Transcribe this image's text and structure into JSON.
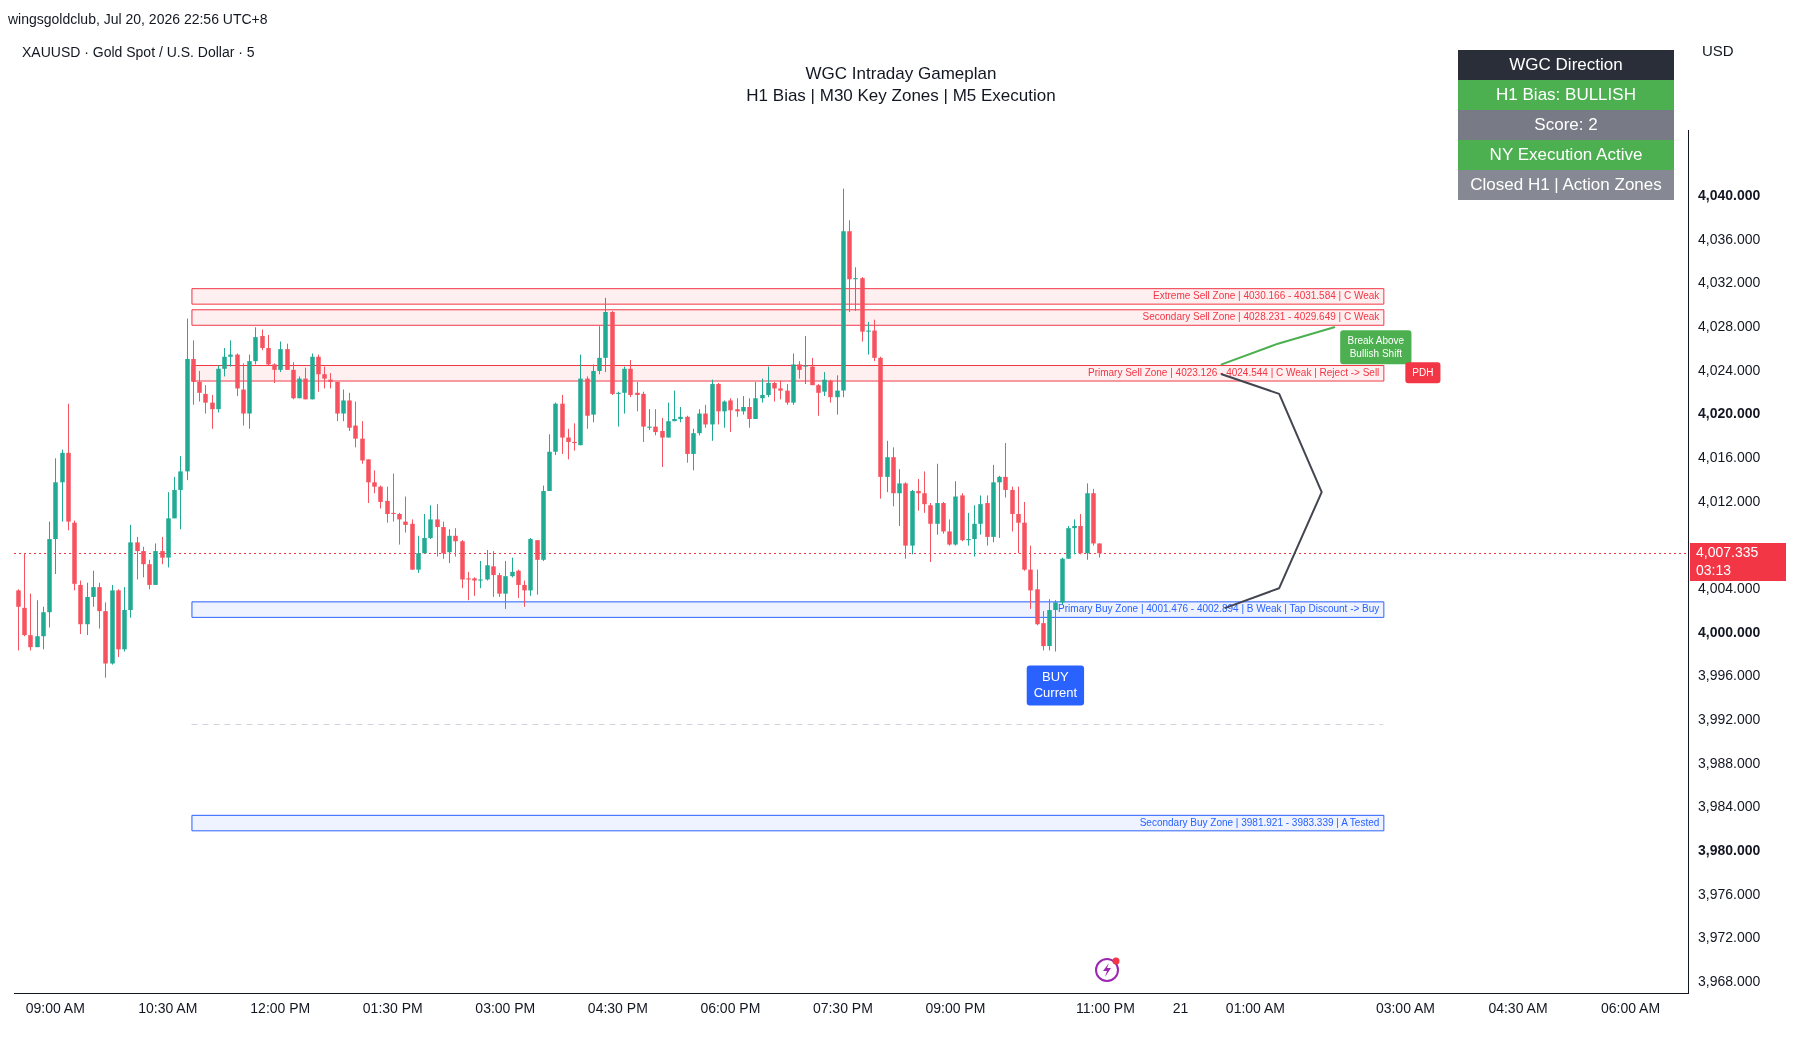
{
  "chart_data": {
    "type": "candlestick",
    "title": "WGC Intraday Gameplan",
    "subtitle": "H1 Bias | M30 Key Zones | M5 Execution",
    "ylabel": "USD",
    "x": [
      "2026-07-20T08:30",
      "2026-07-20T08:35",
      "2026-07-20T08:40",
      "2026-07-20T08:45",
      "2026-07-20T08:50",
      "2026-07-20T08:55",
      "2026-07-20T09:00",
      "2026-07-20T09:05",
      "2026-07-20T09:10",
      "2026-07-20T09:15",
      "2026-07-20T09:20",
      "2026-07-20T09:25",
      "2026-07-20T09:30",
      "2026-07-20T09:35",
      "2026-07-20T09:40",
      "2026-07-20T09:45",
      "2026-07-20T09:50",
      "2026-07-20T09:55",
      "2026-07-20T10:00",
      "2026-07-20T10:05",
      "2026-07-20T10:10",
      "2026-07-20T10:15",
      "2026-07-20T10:20",
      "2026-07-20T10:25",
      "2026-07-20T10:30",
      "2026-07-20T10:35",
      "2026-07-20T10:40",
      "2026-07-20T10:45",
      "2026-07-20T10:50",
      "2026-07-20T10:55",
      "2026-07-20T11:00",
      "2026-07-20T11:05",
      "2026-07-20T11:10",
      "2026-07-20T11:15",
      "2026-07-20T11:20",
      "2026-07-20T11:25",
      "2026-07-20T11:30",
      "2026-07-20T11:35",
      "2026-07-20T11:40",
      "2026-07-20T11:45",
      "2026-07-20T11:50",
      "2026-07-20T11:55",
      "2026-07-20T12:00",
      "2026-07-20T12:05",
      "2026-07-20T12:10",
      "2026-07-20T12:15",
      "2026-07-20T12:20",
      "2026-07-20T12:25",
      "2026-07-20T12:30",
      "2026-07-20T12:35",
      "2026-07-20T12:40",
      "2026-07-20T12:45",
      "2026-07-20T12:50",
      "2026-07-20T12:55",
      "2026-07-20T13:00",
      "2026-07-20T13:05",
      "2026-07-20T13:10",
      "2026-07-20T13:15",
      "2026-07-20T13:20",
      "2026-07-20T13:25",
      "2026-07-20T13:30",
      "2026-07-20T13:35",
      "2026-07-20T13:40",
      "2026-07-20T13:45",
      "2026-07-20T13:50",
      "2026-07-20T13:55",
      "2026-07-20T14:00",
      "2026-07-20T14:05",
      "2026-07-20T14:10",
      "2026-07-20T14:15",
      "2026-07-20T14:20",
      "2026-07-20T14:25",
      "2026-07-20T14:30",
      "2026-07-20T14:35",
      "2026-07-20T14:40",
      "2026-07-20T14:45",
      "2026-07-20T14:50",
      "2026-07-20T14:55",
      "2026-07-20T15:00",
      "2026-07-20T15:05",
      "2026-07-20T15:10",
      "2026-07-20T15:15",
      "2026-07-20T15:20",
      "2026-07-20T15:25",
      "2026-07-20T15:30",
      "2026-07-20T15:35",
      "2026-07-20T15:40",
      "2026-07-20T15:45",
      "2026-07-20T15:50",
      "2026-07-20T15:55",
      "2026-07-20T16:00",
      "2026-07-20T16:05",
      "2026-07-20T16:10",
      "2026-07-20T16:15",
      "2026-07-20T16:20",
      "2026-07-20T16:25",
      "2026-07-20T16:30",
      "2026-07-20T16:35",
      "2026-07-20T16:40",
      "2026-07-20T16:45",
      "2026-07-20T16:50",
      "2026-07-20T16:55",
      "2026-07-20T17:00",
      "2026-07-20T17:05",
      "2026-07-20T17:10",
      "2026-07-20T17:15",
      "2026-07-20T17:20",
      "2026-07-20T17:25",
      "2026-07-20T17:30",
      "2026-07-20T17:35",
      "2026-07-20T17:40",
      "2026-07-20T17:45",
      "2026-07-20T17:50",
      "2026-07-20T17:55",
      "2026-07-20T18:00",
      "2026-07-20T18:05",
      "2026-07-20T18:10",
      "2026-07-20T18:15",
      "2026-07-20T18:20",
      "2026-07-20T18:25",
      "2026-07-20T18:30",
      "2026-07-20T18:35",
      "2026-07-20T18:40",
      "2026-07-20T18:45",
      "2026-07-20T18:50",
      "2026-07-20T18:55",
      "2026-07-20T19:00",
      "2026-07-20T19:05",
      "2026-07-20T19:10",
      "2026-07-20T19:15",
      "2026-07-20T19:20",
      "2026-07-20T19:25",
      "2026-07-20T19:30",
      "2026-07-20T19:35",
      "2026-07-20T19:40",
      "2026-07-20T19:45",
      "2026-07-20T19:50",
      "2026-07-20T19:55",
      "2026-07-20T20:00",
      "2026-07-20T20:05",
      "2026-07-20T20:10",
      "2026-07-20T20:15",
      "2026-07-20T20:20",
      "2026-07-20T20:25",
      "2026-07-20T20:30",
      "2026-07-20T20:35",
      "2026-07-20T20:40",
      "2026-07-20T20:45",
      "2026-07-20T20:50",
      "2026-07-20T20:55",
      "2026-07-20T21:00",
      "2026-07-20T21:05",
      "2026-07-20T21:10",
      "2026-07-20T21:15",
      "2026-07-20T21:20",
      "2026-07-20T21:25",
      "2026-07-20T21:30",
      "2026-07-20T21:35",
      "2026-07-20T21:40",
      "2026-07-20T21:45",
      "2026-07-20T21:50",
      "2026-07-20T21:55",
      "2026-07-20T22:00",
      "2026-07-20T22:05",
      "2026-07-20T22:10",
      "2026-07-20T22:15",
      "2026-07-20T22:20",
      "2026-07-20T22:25",
      "2026-07-20T22:30",
      "2026-07-20T22:35",
      "2026-07-20T22:40",
      "2026-07-20T22:45",
      "2026-07-20T22:50",
      "2026-07-20T22:55"
    ],
    "ohlc": [
      [
        4003.9,
        4004.0,
        3998.4,
        4002.4
      ],
      [
        4002.3,
        4007.3,
        3999.7,
        3999.8
      ],
      [
        3999.8,
        4003.6,
        3998.4,
        3998.7
      ],
      [
        3998.7,
        4003.0,
        3998.7,
        3999.7
      ],
      [
        3999.7,
        4002.4,
        3998.5,
        4001.9
      ],
      [
        4001.9,
        4010.2,
        4000.5,
        4008.6
      ],
      [
        4008.6,
        4016.0,
        4005.4,
        4013.8
      ],
      [
        4013.8,
        4016.8,
        4010.2,
        4016.5
      ],
      [
        4016.5,
        4021.0,
        4009.4,
        4010.2
      ],
      [
        4010.1,
        4010.3,
        4003.9,
        4004.5
      ],
      [
        4004.4,
        4004.8,
        3999.9,
        4000.8
      ],
      [
        4000.8,
        4004.6,
        3999.8,
        4003.3
      ],
      [
        4003.3,
        4005.7,
        4002.4,
        4004.2
      ],
      [
        4004.2,
        4004.6,
        4000.4,
        4002.0
      ],
      [
        4002.0,
        4002.8,
        3995.9,
        3997.2
      ],
      [
        3997.2,
        4004.4,
        3997.1,
        4003.9
      ],
      [
        4003.9,
        4004.0,
        3997.8,
        3998.5
      ],
      [
        3998.5,
        4004.2,
        3998.3,
        4002.1
      ],
      [
        4002.1,
        4009.9,
        4001.4,
        4008.3
      ],
      [
        4008.3,
        4008.8,
        4004.9,
        4007.5
      ],
      [
        4007.5,
        4007.9,
        4005.1,
        4006.3
      ],
      [
        4006.3,
        4006.7,
        4004.0,
        4004.4
      ],
      [
        4004.4,
        4008.2,
        4004.4,
        4007.5
      ],
      [
        4007.5,
        4008.8,
        4006.3,
        4006.9
      ],
      [
        4006.9,
        4012.9,
        4006.0,
        4010.5
      ],
      [
        4010.5,
        4014.3,
        4010.5,
        4013.1
      ],
      [
        4013.1,
        4016.2,
        4009.5,
        4014.8
      ],
      [
        4014.8,
        4028.8,
        4014.0,
        4025.1
      ],
      [
        4025.1,
        4026.8,
        4020.9,
        4023.0
      ],
      [
        4023.0,
        4024.0,
        4021.2,
        4022.0
      ],
      [
        4021.9,
        4022.7,
        4020.1,
        4021.1
      ],
      [
        4021.1,
        4021.8,
        4018.7,
        4020.5
      ],
      [
        4020.5,
        4024.5,
        4020.2,
        4024.2
      ],
      [
        4024.2,
        4026.1,
        4023.5,
        4025.3
      ],
      [
        4025.3,
        4026.8,
        4024.4,
        4025.5
      ],
      [
        4025.5,
        4025.6,
        4021.7,
        4022.4
      ],
      [
        4022.3,
        4024.7,
        4019.0,
        4020.1
      ],
      [
        4020.1,
        4025.5,
        4018.7,
        4024.9
      ],
      [
        4024.9,
        4028.0,
        4024.6,
        4027.1
      ],
      [
        4027.2,
        4027.8,
        4025.9,
        4026.1
      ],
      [
        4026.1,
        4027.3,
        4024.5,
        4024.6
      ],
      [
        4024.6,
        4024.7,
        4022.9,
        4024.1
      ],
      [
        4024.1,
        4026.7,
        4023.9,
        4026.0
      ],
      [
        4026.0,
        4026.5,
        4024.1,
        4024.1
      ],
      [
        4024.1,
        4024.8,
        4021.4,
        4021.5
      ],
      [
        4021.5,
        4023.5,
        4021.5,
        4023.3
      ],
      [
        4023.3,
        4024.3,
        4021.4,
        4021.4
      ],
      [
        4021.4,
        4025.6,
        4021.4,
        4025.3
      ],
      [
        4025.3,
        4025.5,
        4022.1,
        4023.7
      ],
      [
        4023.7,
        4024.4,
        4022.4,
        4023.3
      ],
      [
        4023.2,
        4023.8,
        4022.4,
        4023.0
      ],
      [
        4023.0,
        4023.0,
        4019.4,
        4020.1
      ],
      [
        4020.1,
        4022.3,
        4019.4,
        4021.3
      ],
      [
        4021.3,
        4022.0,
        4018.5,
        4018.8
      ],
      [
        4019.0,
        4021.2,
        4017.0,
        4017.8
      ],
      [
        4017.8,
        4019.4,
        4015.5,
        4015.8
      ],
      [
        4015.9,
        4015.9,
        4011.9,
        4013.8
      ],
      [
        4013.8,
        4014.9,
        4012.8,
        4013.4
      ],
      [
        4013.4,
        4013.5,
        4011.4,
        4012.0
      ],
      [
        4012.1,
        4013.4,
        4010.1,
        4010.9
      ],
      [
        4011.0,
        4014.6,
        4010.2,
        4010.9
      ],
      [
        4010.9,
        4011.0,
        4008.1,
        4010.4
      ],
      [
        4010.2,
        4012.5,
        4009.2,
        4009.9
      ],
      [
        4010.0,
        4010.4,
        4005.8,
        4005.8
      ],
      [
        4005.8,
        4008.9,
        4005.5,
        4007.3
      ],
      [
        4007.3,
        4010.9,
        4007.3,
        4008.7
      ],
      [
        4008.7,
        4011.7,
        4008.6,
        4010.4
      ],
      [
        4010.4,
        4011.8,
        4007.0,
        4009.7
      ],
      [
        4009.7,
        4010.2,
        4006.8,
        4007.3
      ],
      [
        4007.4,
        4009.5,
        4006.4,
        4008.9
      ],
      [
        4008.9,
        4009.6,
        4007.0,
        4008.4
      ],
      [
        4008.4,
        4008.5,
        4004.1,
        4004.9
      ],
      [
        4005.0,
        4005.6,
        4003.0,
        4004.9
      ],
      [
        4005.0,
        4005.1,
        4003.4,
        4004.8
      ],
      [
        4004.8,
        4006.6,
        4004.1,
        4004.9
      ],
      [
        4004.9,
        4007.6,
        4004.8,
        4006.2
      ],
      [
        4006.1,
        4007.5,
        4003.3,
        4005.3
      ],
      [
        4005.3,
        4005.5,
        4003.3,
        4003.6
      ],
      [
        4003.6,
        4006.6,
        4002.2,
        4005.2
      ],
      [
        4005.2,
        4006.9,
        4005.1,
        4005.6
      ],
      [
        4005.7,
        4005.8,
        4003.2,
        4004.4
      ],
      [
        4004.4,
        4004.8,
        4002.4,
        4003.9
      ],
      [
        4003.9,
        4008.7,
        4003.4,
        4008.6
      ],
      [
        4008.5,
        4008.5,
        4003.5,
        4006.7
      ],
      [
        4006.7,
        4013.5,
        4006.6,
        4013.0
      ],
      [
        4013.0,
        4018.2,
        4013.0,
        4016.6
      ],
      [
        4016.6,
        4021.1,
        4016.3,
        4021.0
      ],
      [
        4021.0,
        4021.8,
        4016.4,
        4017.9
      ],
      [
        4017.9,
        4018.7,
        4015.9,
        4017.5
      ],
      [
        4017.5,
        4019.2,
        4016.7,
        4017.4
      ],
      [
        4017.2,
        4025.5,
        4017.2,
        4023.3
      ],
      [
        4023.3,
        4023.5,
        4018.7,
        4019.9
      ],
      [
        4020.0,
        4024.6,
        4019.3,
        4024.0
      ],
      [
        4024.0,
        4028.1,
        4023.7,
        4025.2
      ],
      [
        4025.2,
        4030.7,
        4023.9,
        4029.4
      ],
      [
        4029.4,
        4029.5,
        4021.8,
        4021.9
      ],
      [
        4021.9,
        4022.1,
        4018.9,
        4022.0
      ],
      [
        4022.0,
        4024.4,
        4020.1,
        4024.2
      ],
      [
        4024.2,
        4025.0,
        4021.6,
        4021.8
      ],
      [
        4022.0,
        4023.0,
        4020.3,
        4021.8
      ],
      [
        4021.9,
        4022.1,
        4017.5,
        4018.9
      ],
      [
        4018.8,
        4020.5,
        4018.6,
        4018.9
      ],
      [
        4018.9,
        4020.5,
        4018.1,
        4018.4
      ],
      [
        4018.5,
        4019.7,
        4015.2,
        4017.9
      ],
      [
        4017.9,
        4021.1,
        4017.9,
        4019.4
      ],
      [
        4019.4,
        4022.2,
        4019.4,
        4019.6
      ],
      [
        4019.6,
        4020.7,
        4019.3,
        4019.8
      ],
      [
        4019.8,
        4019.9,
        4015.6,
        4016.4
      ],
      [
        4016.4,
        4018.7,
        4014.9,
        4018.3
      ],
      [
        4018.3,
        4020.5,
        4018.1,
        4020.1
      ],
      [
        4020.1,
        4020.9,
        4018.8,
        4019.1
      ],
      [
        4019.1,
        4023.2,
        4017.6,
        4022.8
      ],
      [
        4022.8,
        4022.9,
        4019.1,
        4020.3
      ],
      [
        4020.3,
        4021.3,
        4018.8,
        4021.2
      ],
      [
        4021.3,
        4021.5,
        4018.4,
        4020.4
      ],
      [
        4020.5,
        4021.5,
        4019.8,
        4020.3
      ],
      [
        4020.3,
        4021.7,
        4020.0,
        4020.7
      ],
      [
        4020.7,
        4021.5,
        4018.8,
        4019.6
      ],
      [
        4019.6,
        4023.0,
        4019.6,
        4021.5
      ],
      [
        4021.5,
        4023.3,
        4021.1,
        4021.8
      ],
      [
        4021.8,
        4024.4,
        4021.6,
        4022.9
      ],
      [
        4022.9,
        4023.0,
        4021.2,
        4022.4
      ],
      [
        4022.4,
        4023.1,
        4021.4,
        4022.2
      ],
      [
        4022.2,
        4022.8,
        4020.9,
        4021.1
      ],
      [
        4021.1,
        4025.6,
        4020.9,
        4024.6
      ],
      [
        4024.6,
        4024.9,
        4023.3,
        4024.1
      ],
      [
        4024.4,
        4027.2,
        4022.8,
        4024.5
      ],
      [
        4024.4,
        4025.2,
        4022.7,
        4022.7
      ],
      [
        4022.7,
        4022.8,
        4019.9,
        4022.0
      ],
      [
        4022.1,
        4023.9,
        4021.7,
        4023.2
      ],
      [
        4023.1,
        4023.2,
        4021.1,
        4021.6
      ],
      [
        4021.6,
        4023.6,
        4020.0,
        4022.2
      ],
      [
        4022.2,
        4040.7,
        4021.6,
        4036.8
      ],
      [
        4036.8,
        4037.8,
        4029.4,
        4032.4
      ],
      [
        4032.4,
        4033.5,
        4029.5,
        4032.5
      ],
      [
        4032.5,
        4032.6,
        4026.7,
        4027.6
      ],
      [
        4027.6,
        4028.5,
        4025.5,
        4027.7
      ],
      [
        4027.7,
        4028.7,
        4024.9,
        4025.2
      ],
      [
        4025.2,
        4025.3,
        4012.3,
        4014.3
      ],
      [
        4014.3,
        4017.6,
        4012.9,
        4016.1
      ],
      [
        4016.1,
        4017.0,
        4011.6,
        4012.8
      ],
      [
        4012.8,
        4015.0,
        4009.8,
        4013.7
      ],
      [
        4013.7,
        4013.8,
        4006.8,
        4008.0
      ],
      [
        4008.0,
        4013.1,
        4007.2,
        4013.0
      ],
      [
        4013.0,
        4014.1,
        4011.2,
        4012.8
      ],
      [
        4012.8,
        4014.8,
        4011.0,
        4011.8
      ],
      [
        4011.7,
        4011.9,
        4006.5,
        4010.0
      ],
      [
        4010.0,
        4015.5,
        4009.0,
        4011.9
      ],
      [
        4011.9,
        4012.0,
        4009.1,
        4009.3
      ],
      [
        4009.3,
        4010.4,
        4008.0,
        4008.1
      ],
      [
        4008.1,
        4013.9,
        4008.0,
        4012.5
      ],
      [
        4012.6,
        4012.8,
        4008.4,
        4008.5
      ],
      [
        4008.5,
        4011.0,
        4008.0,
        4008.6
      ],
      [
        4008.6,
        4011.7,
        4007.0,
        4010.0
      ],
      [
        4010.0,
        4012.6,
        4009.0,
        4011.8
      ],
      [
        4011.9,
        4012.6,
        4008.0,
        4008.8
      ],
      [
        4008.8,
        4015.4,
        4008.3,
        4013.8
      ],
      [
        4013.8,
        4014.4,
        4008.7,
        4014.3
      ],
      [
        4014.3,
        4017.4,
        4012.4,
        4013.1
      ],
      [
        4013.1,
        4013.4,
        4009.3,
        4010.9
      ],
      [
        4010.9,
        4013.4,
        4007.3,
        4010.1
      ],
      [
        4010.1,
        4012.0,
        4005.7,
        4005.8
      ],
      [
        4005.8,
        4008.0,
        4002.2,
        4003.9
      ],
      [
        4004.0,
        4005.8,
        4000.7,
        4000.8
      ],
      [
        4000.9,
        4002.0,
        3998.4,
        3998.8
      ],
      [
        3998.8,
        4003.1,
        3998.4,
        4002.1
      ],
      [
        4002.1,
        4003.0,
        3998.3,
        4002.8
      ],
      [
        4002.8,
        4006.9,
        4002.6,
        4006.8
      ],
      [
        4006.8,
        4009.8,
        4006.8,
        4009.6
      ],
      [
        4009.6,
        4010.4,
        4007.2,
        4009.8
      ],
      [
        4009.8,
        4010.9,
        4007.2,
        4007.3
      ],
      [
        4007.3,
        4013.7,
        4006.7,
        4012.8
      ],
      [
        4012.8,
        4013.2,
        4008.0,
        4008.2
      ],
      [
        4008.2,
        4008.2,
        4006.9,
        4007.3
      ]
    ],
    "series": [
      {
        "type": "line",
        "color": "#4caf50",
        "x": [
          "2026-07-21T00:33",
          "2026-07-21T01:18",
          "2026-07-21T02:03"
        ],
        "values": [
          4024.6,
          4026.5,
          4028.0
        ]
      },
      {
        "type": "line",
        "color": "#434651",
        "x": [
          "2026-07-21T00:33",
          "2026-07-21T01:19",
          "2026-07-21T01:53",
          "2026-07-21T01:19",
          "2026-07-21T00:36"
        ],
        "values": [
          4023.7,
          4021.9,
          4012.9,
          4004.1,
          4002.3
        ]
      }
    ],
    "xlim": [
      "2026-07-20T08:27",
      "2026-07-21T06:46"
    ],
    "xticks": [
      {
        "value": "2026-07-20T09:00",
        "label": "09:00 AM"
      },
      {
        "value": "2026-07-20T10:30",
        "label": "10:30 AM"
      },
      {
        "value": "2026-07-20T12:00",
        "label": "12:00 PM"
      },
      {
        "value": "2026-07-20T13:30",
        "label": "01:30 PM"
      },
      {
        "value": "2026-07-20T15:00",
        "label": "03:00 PM"
      },
      {
        "value": "2026-07-20T16:30",
        "label": "04:30 PM"
      },
      {
        "value": "2026-07-20T18:00",
        "label": "06:00 PM"
      },
      {
        "value": "2026-07-20T19:30",
        "label": "07:30 PM"
      },
      {
        "value": "2026-07-20T21:00",
        "label": "09:00 PM"
      },
      {
        "value": "2026-07-20T23:00",
        "label": "11:00 PM"
      },
      {
        "value": "2026-07-21T00:00",
        "label": "21"
      },
      {
        "value": "2026-07-21T01:00",
        "label": "01:00 AM"
      },
      {
        "value": "2026-07-21T03:00",
        "label": "03:00 AM"
      },
      {
        "value": "2026-07-21T04:30",
        "label": "04:30 AM"
      },
      {
        "value": "2026-07-21T06:00",
        "label": "06:00 AM"
      }
    ],
    "ylim": [
      3967,
      4046
    ],
    "yticks": [
      {
        "value": 3968,
        "label": "3,968.000"
      },
      {
        "value": 3972,
        "label": "3,972.000"
      },
      {
        "value": 3976,
        "label": "3,976.000"
      },
      {
        "value": 3980,
        "label": "3,980.000"
      },
      {
        "value": 3984,
        "label": "3,984.000"
      },
      {
        "value": 3988,
        "label": "3,988.000"
      },
      {
        "value": 3992,
        "label": "3,992.000"
      },
      {
        "value": 3996,
        "label": "3,996.000"
      },
      {
        "value": 4000,
        "label": "4,000.000"
      },
      {
        "value": 4004,
        "label": "4,004.000"
      },
      {
        "value": 4012,
        "label": "4,012.000"
      },
      {
        "value": 4016,
        "label": "4,016.000"
      },
      {
        "value": 4020,
        "label": "4,020.000"
      },
      {
        "value": 4024,
        "label": "4,024.000"
      },
      {
        "value": 4028,
        "label": "4,028.000"
      },
      {
        "value": 4032,
        "label": "4,032.000"
      },
      {
        "value": 4036,
        "label": "4,036.000"
      },
      {
        "value": 4040,
        "label": "4,040.000"
      }
    ],
    "bands": [
      {
        "axis": "y",
        "from": 4030.166,
        "to": 4031.584,
        "label": "Extreme Sell Zone | 4030.166 - 4031.584 | C Weak",
        "color": "#f23645"
      },
      {
        "axis": "y",
        "from": 4028.231,
        "to": 4029.649,
        "label": "Secondary Sell Zone | 4028.231 - 4029.649 | C Weak",
        "color": "#f23645"
      },
      {
        "axis": "y",
        "from": 4023.126,
        "to": 4024.544,
        "label": "Primary Sell Zone | 4023.126 - 4024.544 | C Weak | Reject -> Sell",
        "color": "#f23645"
      },
      {
        "axis": "y",
        "from": 4001.476,
        "to": 4002.894,
        "label": "Primary Buy Zone | 4001.476 - 4002.894 | B Weak | Tap Discount -> Buy",
        "color": "#2962ff"
      },
      {
        "axis": "y",
        "from": 3981.921,
        "to": 3983.339,
        "label": "Secondary Buy Zone | 3981.921 - 3983.339 | A Tested",
        "color": "#2962ff"
      }
    ],
    "ref_lines": [
      {
        "axis": "y",
        "value": 4007.335,
        "label": "4,007.335",
        "color": "#f23645",
        "line_style": "dotted"
      },
      {
        "axis": "y",
        "value": 3991.7,
        "color": "#d1d4dc",
        "line_style": "dashed"
      }
    ],
    "annotations": [
      "wingsgoldclub, Jul 20, 2026 22:56 UTC+8",
      "XAUUSD · Gold Spot / U.S. Dollar · 5",
      "WGC Direction",
      "H1 Bias: BULLISH",
      "Score: 2",
      "NY Execution Active",
      "Closed H1 | Action Zones",
      "03:13",
      "BUY Current",
      "Break Above Bullish Shift",
      "PDH"
    ]
  }
}
